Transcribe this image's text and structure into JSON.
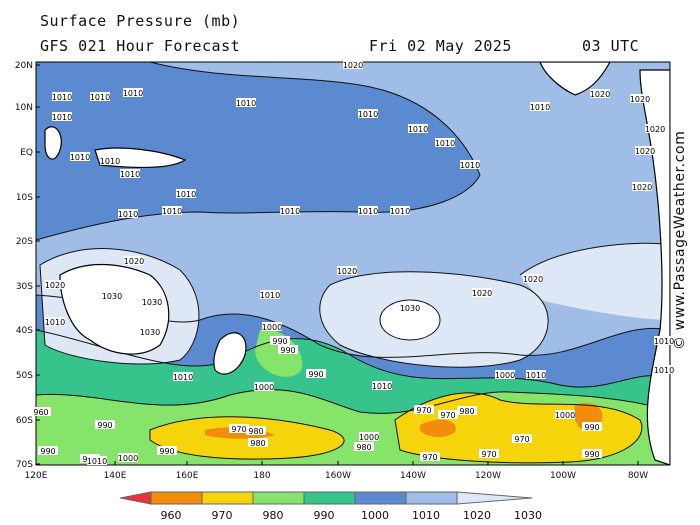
{
  "header": {
    "title": "Surface Pressure (mb)",
    "forecast": "GFS 021 Hour Forecast",
    "date": "Fri 02 May 2025",
    "time": "03 UTC"
  },
  "credit": "© www.PassageWeather.com",
  "lat_labels": [
    "20N",
    "10N",
    "EQ",
    "10S",
    "20S",
    "30S",
    "40S",
    "50S",
    "60S",
    "70S"
  ],
  "lon_labels": [
    "120E",
    "140E",
    "160E",
    "180",
    "160W",
    "140W",
    "120W",
    "100W",
    "80W"
  ],
  "colorbar": {
    "levels": [
      "960",
      "970",
      "980",
      "990",
      "1000",
      "1010",
      "1020",
      "1030"
    ],
    "colors": [
      "#e8333a",
      "#f28c0a",
      "#f6d40c",
      "#86e46a",
      "#36c48c",
      "#5b8ad0",
      "#9fbde6",
      "#dde7f5"
    ]
  },
  "contour_labels": [
    "1020",
    "1010",
    "1010",
    "1010",
    "1010",
    "1010",
    "1010",
    "1010",
    "1010",
    "1010",
    "1010",
    "1010",
    "1010",
    "1010",
    "1010",
    "1010",
    "1010",
    "1010",
    "1010",
    "1010",
    "1020",
    "1020",
    "1020",
    "1020",
    "1020",
    "1020",
    "1020",
    "1020",
    "1020",
    "1020",
    "1030",
    "1030",
    "1030",
    "1030",
    "1010",
    "1010",
    "1010",
    "1010",
    "1010",
    "1010",
    "1010",
    "1000",
    "1000",
    "1000",
    "1000",
    "1000",
    "990",
    "990",
    "990",
    "990",
    "990",
    "990",
    "990",
    "980",
    "980",
    "980",
    "980",
    "970",
    "970",
    "970",
    "970",
    "970",
    "970",
    "990",
    "990",
    "1000",
    "1010",
    "960"
  ]
}
